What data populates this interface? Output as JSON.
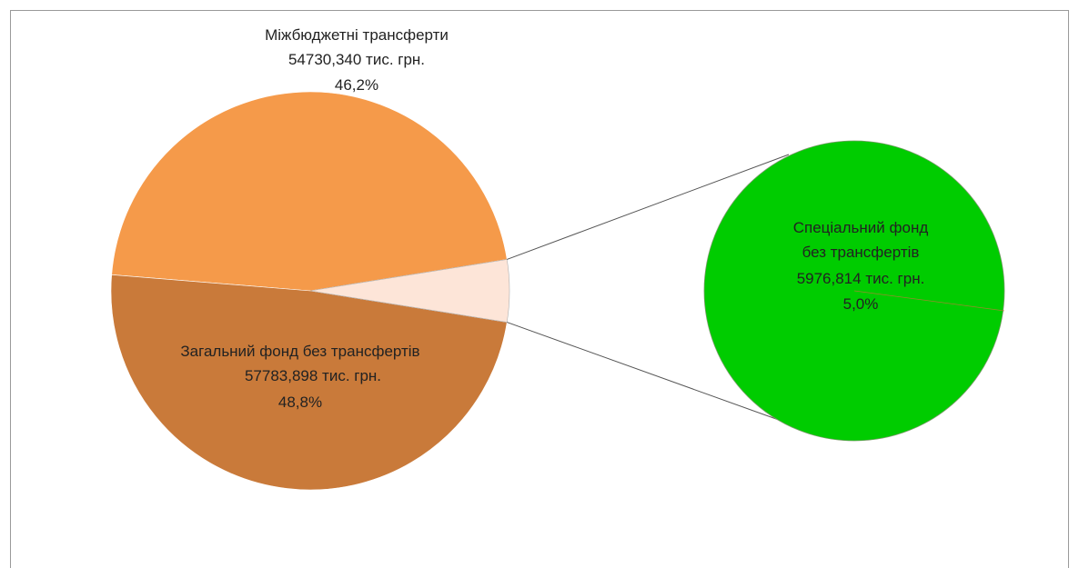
{
  "chart_data": {
    "type": "pie",
    "variant": "pie-of-pie",
    "slices": [
      {
        "name": "Міжбюджетні трансферти",
        "value_text": "54730,340 тис. грн.",
        "value": 54730.34,
        "percent_text": "46,2%",
        "percent": 46.2,
        "color": "#f59a4a"
      },
      {
        "name": "Загальний фонд без трансфертів",
        "value_text": "57783,898 тис. грн.",
        "value": 57783.898,
        "percent_text": "48,8%",
        "percent": 48.8,
        "color": "#c97a3a"
      },
      {
        "name_line1": "Спеціальний фонд",
        "name_line2": "без трансфертів",
        "value_text": "5976,814 тис. грн.",
        "value": 5976.814,
        "percent_text": "5,0%",
        "percent": 5.0,
        "color": "#fde5d8",
        "detail_color": "#00cc00"
      }
    ],
    "legend": "none",
    "grid": false
  }
}
